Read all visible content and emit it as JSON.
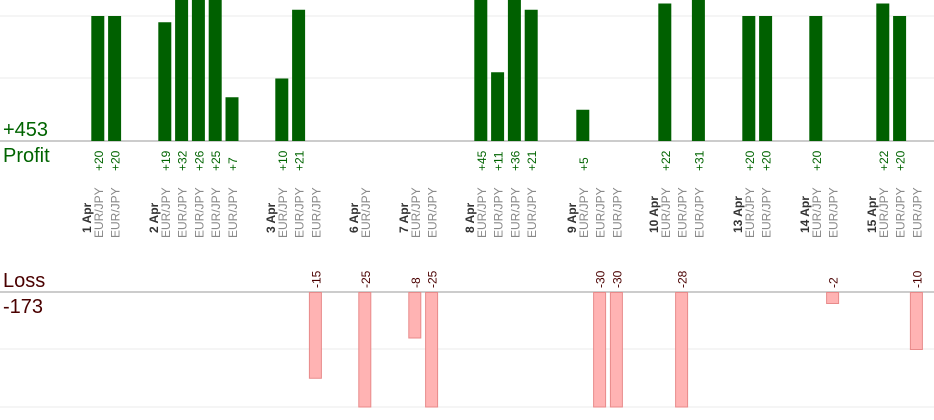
{
  "summary": {
    "profit_value": "+453",
    "profit_label": "Profit",
    "loss_label": "Loss",
    "loss_value": "-173"
  },
  "colors": {
    "profit_bar": "#006000",
    "loss_bar": "#ffb3b3",
    "loss_bar_stroke": "#e88a8a",
    "profit_text": "#006400",
    "loss_text": "#4a0000",
    "date_text": "#333333",
    "pair_text": "#888888"
  },
  "chart_data": {
    "type": "bar",
    "title": "",
    "pair": "EUR/JPY",
    "ylim_profit": [
      0,
      20
    ],
    "ylim_loss": [
      -20,
      0
    ],
    "grid": true,
    "columns": [
      {
        "date": "1 Apr",
        "trades": [
          20,
          20
        ]
      },
      {
        "date": "2 Apr",
        "trades": [
          19,
          32,
          26,
          25,
          7
        ]
      },
      {
        "date": "3 Apr",
        "trades": [
          10,
          21,
          -15
        ]
      },
      {
        "date": "6 Apr",
        "trades": [
          -25
        ]
      },
      {
        "date": "7 Apr",
        "trades": [
          -8,
          -25
        ]
      },
      {
        "date": "8 Apr",
        "trades": [
          45,
          11,
          36,
          21
        ]
      },
      {
        "date": "9 Apr",
        "trades": [
          5,
          -30,
          -30
        ]
      },
      {
        "date": "10 Apr",
        "trades": [
          22,
          -28,
          31
        ]
      },
      {
        "date": "13 Apr",
        "trades": [
          20,
          20
        ]
      },
      {
        "date": "14 Apr",
        "trades": [
          20,
          -2
        ]
      },
      {
        "date": "15 Apr",
        "trades": [
          22,
          20,
          -10
        ]
      }
    ],
    "value_labels": {
      "1 Apr": [
        "+20",
        "+20"
      ],
      "2 Apr": [
        "+19",
        "+32",
        "+26",
        "+25",
        "+7"
      ],
      "3 Apr": [
        "+10",
        "+21",
        "-15"
      ],
      "6 Apr": [
        "-25"
      ],
      "7 Apr": [
        "-8",
        "-25"
      ],
      "8 Apr": [
        "+45",
        "+11",
        "+36",
        "+21"
      ],
      "9 Apr": [
        "+5",
        "-30",
        "-30"
      ],
      "10 Apr": [
        "+22",
        "-28",
        "+31"
      ],
      "13 Apr": [
        "+20",
        "+20"
      ],
      "14 Apr": [
        "+20",
        "-2"
      ],
      "15 Apr": [
        "+22",
        "+20",
        "-10"
      ]
    }
  }
}
